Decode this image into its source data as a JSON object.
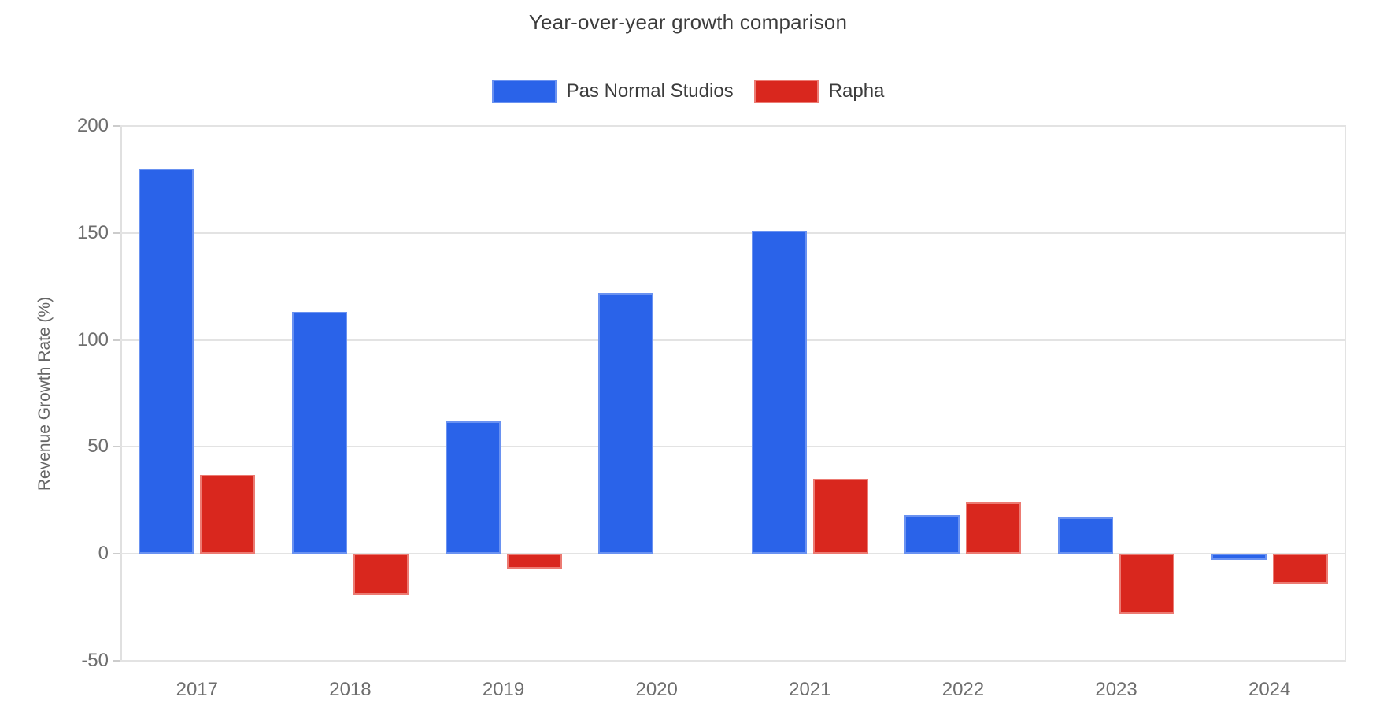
{
  "chart_data": {
    "type": "bar",
    "title": "Year-over-year growth comparison",
    "ylabel": "Revenue Growth Rate (%)",
    "xlabel": "",
    "categories": [
      "2017",
      "2018",
      "2019",
      "2020",
      "2021",
      "2022",
      "2023",
      "2024"
    ],
    "series": [
      {
        "name": "Pas Normal Studios",
        "color": "#2a63e9",
        "stroke": "#6a92f1",
        "values": [
          180,
          113,
          62,
          122,
          151,
          18,
          17,
          -3
        ]
      },
      {
        "name": "Rapha",
        "color": "#d9271e",
        "stroke": "#ec7b73",
        "values": [
          37,
          -19,
          -7,
          0,
          35,
          24,
          -28,
          -14
        ]
      }
    ],
    "ylim": [
      -50,
      200
    ],
    "yticks": [
      200,
      150,
      100,
      50,
      0,
      -50
    ],
    "grid": true,
    "legend_position": "top",
    "colors": {
      "title_text": "#3c3c3c",
      "axis_text": "#6e6e6e",
      "gridline": "#e3e3e3",
      "background": "#ffffff"
    }
  }
}
